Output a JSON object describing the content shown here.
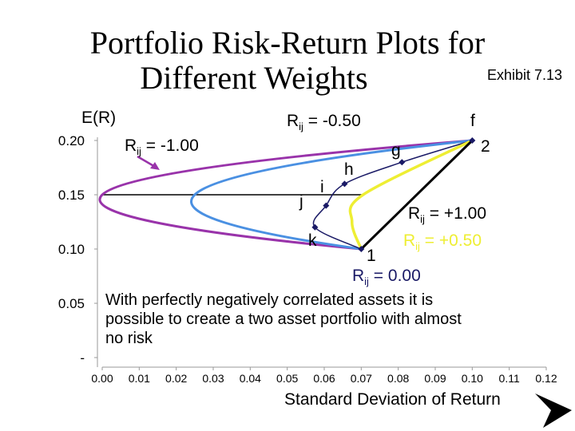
{
  "header": {
    "title_line1": "Portfolio Risk-Return Plots for",
    "title_line2": "Different Weights",
    "exhibit": "Exhibit 7.13"
  },
  "note": "With perfectly negatively correlated assets it is possible to create a two asset portfolio with almost no risk",
  "colors": {
    "purple": "#9933aa",
    "blue": "#4a90e2",
    "yellow": "#eeee33",
    "navy": "#1a1a66",
    "black": "#000000"
  },
  "chart_data": {
    "type": "line",
    "title": "Portfolio Risk-Return Plots for Different Weights",
    "xlabel": "Standard Deviation of Return",
    "ylabel": "E(R)",
    "xlim": [
      0,
      0.12
    ],
    "ylim": [
      0,
      0.2
    ],
    "x_ticks": [
      "0.00",
      "0.01",
      "0.02",
      "0.03",
      "0.04",
      "0.05",
      "0.06",
      "0.07",
      "0.08",
      "0.09",
      "0.10",
      "0.11",
      "0.12"
    ],
    "y_ticks": [
      "-",
      "0.05",
      "0.10",
      "0.15",
      "0.20"
    ],
    "series": [
      {
        "name": "Rij = -1.00",
        "color": "purple",
        "x": [
          0.07,
          0.0,
          0.1
        ],
        "y": [
          0.1,
          0.15,
          0.2
        ]
      },
      {
        "name": "Rij = -0.50",
        "color": "blue",
        "x": [
          0.07,
          0.025,
          0.1
        ],
        "y": [
          0.1,
          0.15,
          0.2
        ]
      },
      {
        "name": "Rij = 0.00",
        "color": "navy",
        "x": [
          0.07,
          0.0575,
          0.0605,
          0.0655,
          0.081,
          0.1
        ],
        "y": [
          0.1,
          0.12,
          0.14,
          0.16,
          0.18,
          0.2
        ]
      },
      {
        "name": "Rij = +0.50",
        "color": "yellow",
        "x": [
          0.07,
          0.0675,
          0.0705,
          0.1
        ],
        "y": [
          0.1,
          0.125,
          0.15,
          0.2
        ]
      },
      {
        "name": "Rij = +1.00",
        "color": "black",
        "x": [
          0.07,
          0.1
        ],
        "y": [
          0.1,
          0.2
        ]
      }
    ],
    "reference_line": {
      "y": 0.15,
      "x": [
        0.0,
        0.0705
      ]
    },
    "points": [
      {
        "label": "1",
        "x": 0.07,
        "y": 0.1
      },
      {
        "label": "2",
        "x": 0.1,
        "y": 0.2
      },
      {
        "label": "f",
        "x": 0.1,
        "y": 0.2
      },
      {
        "label": "g",
        "x": 0.081,
        "y": 0.18
      },
      {
        "label": "h",
        "x": 0.0655,
        "y": 0.16
      },
      {
        "label": "i",
        "x": 0.0605,
        "y": 0.14
      },
      {
        "label": "j",
        "x": 0.0605,
        "y": 0.14
      },
      {
        "label": "k",
        "x": 0.0575,
        "y": 0.12
      }
    ],
    "annotations": {
      "r": "R",
      "sub": "ij",
      "neg100": " = -1.00",
      "neg050": " = -0.50",
      "pos100": " = +1.00",
      "pos050": " = +0.50",
      "zero": " = 0.00"
    }
  }
}
